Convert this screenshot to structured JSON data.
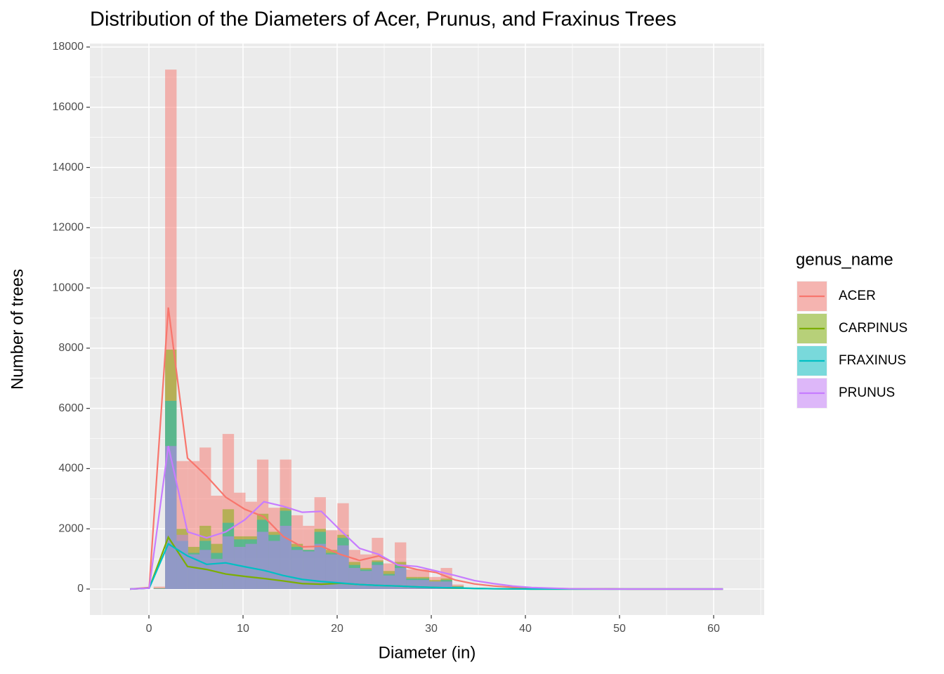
{
  "chart_data": {
    "type": "histogram",
    "title": "Distribution of the Diameters of Acer, Prunus, and Fraxinus Trees",
    "x_label": "Diameter (in)",
    "y_label": "Number of trees",
    "legend_title": "genus_name",
    "xlim": [
      -6.27,
      65.37
    ],
    "ylim": [
      -863,
      18116
    ],
    "xticks": [
      0,
      10,
      20,
      30,
      40,
      50,
      60
    ],
    "yticks": [
      0,
      2000,
      4000,
      6000,
      8000,
      10000,
      12000,
      14000,
      16000,
      18000
    ],
    "grid": true,
    "bar_opacity": 0.5,
    "bins": [
      0.5,
      1.72,
      2.94,
      4.16,
      5.38,
      6.6,
      7.82,
      9.04,
      10.26,
      11.48,
      12.7,
      13.92,
      15.14,
      16.36,
      17.58,
      18.8,
      20.02,
      21.24,
      22.46,
      23.68,
      24.9,
      26.12,
      27.34,
      28.56,
      29.78,
      31.0,
      32.22,
      33.44
    ],
    "line_x": [
      -2,
      0.03,
      2.06,
      4.1,
      6.13,
      8.16,
      10.19,
      12.22,
      14.26,
      16.29,
      18.32,
      20.35,
      22.38,
      24.42,
      26.45,
      28.48,
      30.51,
      32.54,
      34.58,
      36.61,
      38.64,
      40.67,
      42.7,
      44.74,
      46.77,
      48.8,
      50.83,
      52.86,
      54.9,
      56.93,
      58.96,
      60.99
    ],
    "series": [
      {
        "name": "ACER",
        "color": "#F8766D",
        "values": [
          80,
          17250,
          4250,
          4250,
          4700,
          3100,
          5150,
          3200,
          2900,
          4300,
          2700,
          4300,
          2450,
          2100,
          3050,
          1950,
          2850,
          1300,
          1150,
          1700,
          850,
          1550,
          650,
          650,
          400,
          700,
          150
        ],
        "line_values": [
          0,
          50,
          9350,
          4350,
          3750,
          3050,
          2650,
          2400,
          1750,
          1400,
          1420,
          1150,
          950,
          1100,
          800,
          650,
          550,
          300,
          170,
          100,
          60,
          30,
          20,
          10,
          5,
          5,
          0,
          0,
          0,
          0,
          0,
          0
        ]
      },
      {
        "name": "CARPINUS",
        "color": "#7CAE00",
        "values": [
          30,
          7950,
          2000,
          1400,
          2100,
          1500,
          2650,
          1750,
          1750,
          2500,
          1900,
          2700,
          1500,
          1300,
          2000,
          1300,
          1800,
          900,
          700,
          950,
          600,
          900,
          400,
          400,
          300,
          350,
          100
        ],
        "line_values": [
          0,
          30,
          1720,
          750,
          650,
          500,
          420,
          350,
          270,
          180,
          160,
          190,
          150,
          120,
          100,
          70,
          50,
          30,
          20,
          10,
          5,
          0,
          0,
          0,
          0,
          0,
          0,
          0,
          0,
          0,
          0,
          0
        ]
      },
      {
        "name": "FRAXINUS",
        "color": "#00BFC4",
        "values": [
          20,
          6250,
          1600,
          1200,
          1600,
          1200,
          2200,
          1650,
          1650,
          2300,
          1800,
          2600,
          1400,
          1300,
          1900,
          1200,
          1700,
          800,
          650,
          900,
          500,
          800,
          350,
          350,
          250,
          300,
          80
        ],
        "line_values": [
          0,
          30,
          1500,
          1100,
          820,
          870,
          740,
          620,
          450,
          320,
          250,
          200,
          150,
          120,
          100,
          70,
          50,
          40,
          20,
          10,
          5,
          0,
          0,
          0,
          0,
          0,
          0,
          0,
          0,
          0,
          0,
          0
        ]
      },
      {
        "name": "PRUNUS",
        "color": "#C77CFF",
        "values": [
          10,
          4750,
          1800,
          1150,
          1300,
          1000,
          1750,
          1400,
          1500,
          1900,
          1600,
          2100,
          1300,
          1250,
          1500,
          1150,
          1450,
          700,
          600,
          800,
          450,
          700,
          300,
          300,
          250,
          250,
          60
        ],
        "line_values": [
          0,
          30,
          4750,
          1900,
          1700,
          1900,
          2300,
          2900,
          2750,
          2550,
          2580,
          1950,
          1350,
          1150,
          800,
          750,
          600,
          450,
          280,
          180,
          100,
          50,
          30,
          10,
          5,
          0,
          0,
          0,
          0,
          0,
          0,
          0
        ]
      }
    ]
  }
}
